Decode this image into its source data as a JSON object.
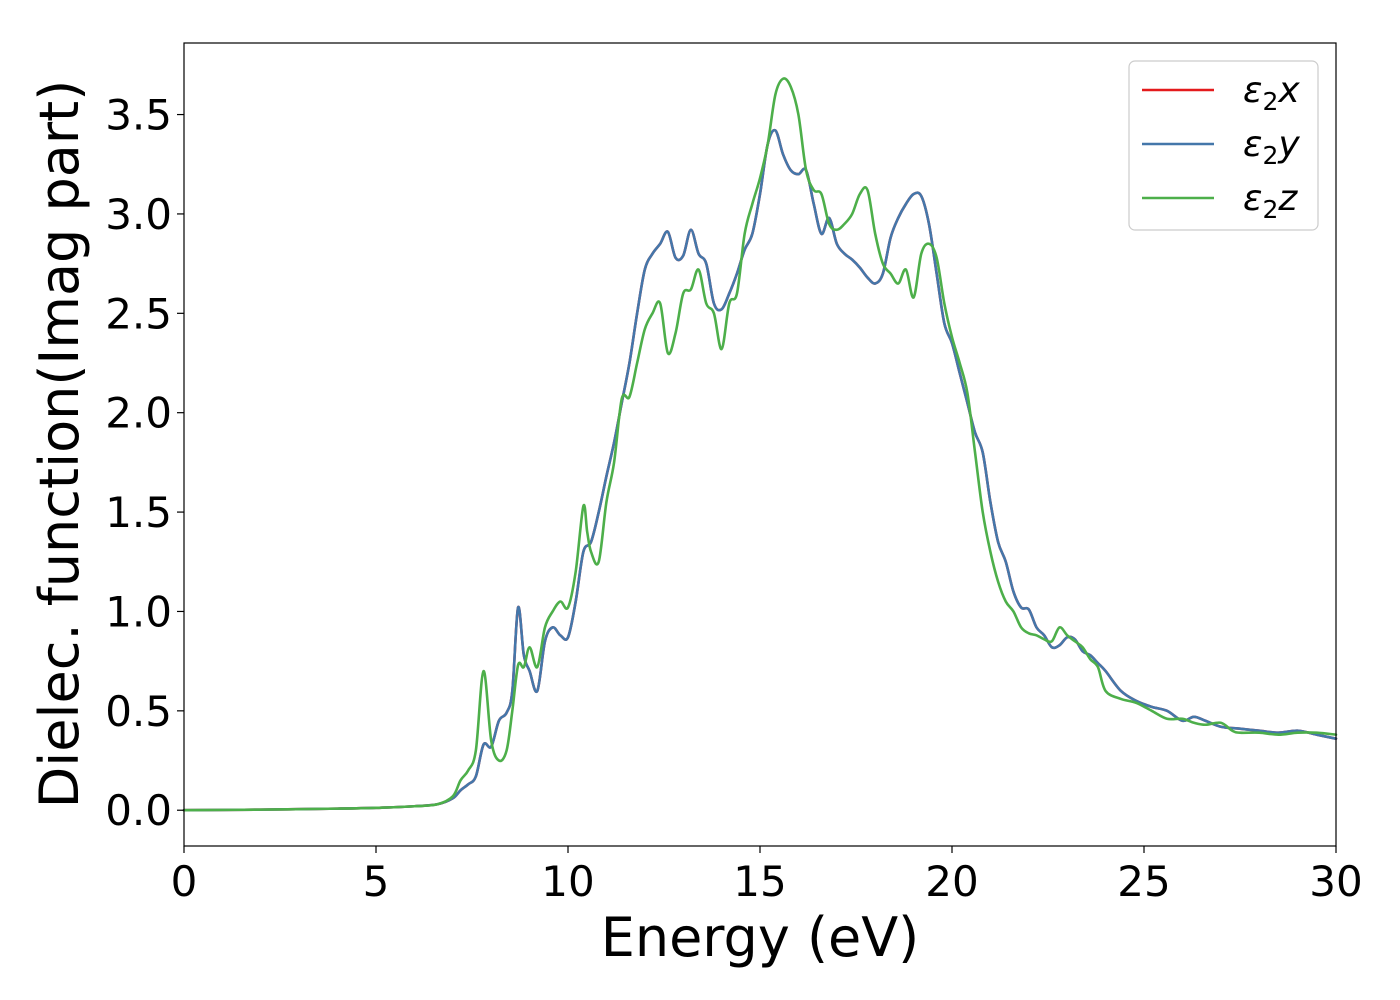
{
  "chart_data": {
    "type": "line",
    "title": "",
    "xlabel": "Energy (eV)",
    "ylabel": "Dielec. function(Imag part)",
    "xlim": [
      0,
      30
    ],
    "ylim": [
      -0.18,
      3.86
    ],
    "xticks": [
      0,
      5,
      10,
      15,
      20,
      25,
      30
    ],
    "yticks": [
      0.0,
      0.5,
      1.0,
      1.5,
      2.0,
      2.5,
      3.0,
      3.5
    ],
    "xtick_labels": [
      "0",
      "5",
      "10",
      "15",
      "20",
      "25",
      "30"
    ],
    "ytick_labels": [
      "0.0",
      "0.5",
      "1.0",
      "1.5",
      "2.0",
      "2.5",
      "3.0",
      "3.5"
    ],
    "grid": false,
    "legend_position": "top-right",
    "series": [
      {
        "name": "ε2x",
        "legend_symbol": "ε",
        "legend_sub": "2",
        "legend_var": "x",
        "color": "#e41a1c",
        "x": [
          0,
          2,
          4,
          5,
          6,
          6.6,
          7.0,
          7.2,
          7.4,
          7.6,
          7.8,
          8.0,
          8.2,
          8.4,
          8.55,
          8.7,
          8.85,
          9.0,
          9.2,
          9.4,
          9.6,
          9.8,
          10.0,
          10.2,
          10.4,
          10.6,
          10.8,
          11.0,
          11.2,
          11.4,
          11.6,
          11.8,
          12.0,
          12.2,
          12.4,
          12.6,
          12.8,
          13.0,
          13.2,
          13.4,
          13.6,
          13.8,
          14.0,
          14.2,
          14.4,
          14.6,
          14.8,
          15.0,
          15.2,
          15.4,
          15.6,
          15.8,
          16.0,
          16.2,
          16.4,
          16.6,
          16.8,
          17.0,
          17.2,
          17.4,
          17.6,
          17.8,
          18.0,
          18.2,
          18.4,
          18.6,
          18.8,
          19.0,
          19.2,
          19.4,
          19.6,
          19.8,
          20.0,
          20.2,
          20.4,
          20.6,
          20.8,
          21.0,
          21.2,
          21.4,
          21.6,
          21.8,
          22.0,
          22.2,
          22.4,
          22.6,
          22.8,
          23.0,
          23.2,
          23.4,
          23.6,
          23.8,
          24.0,
          24.4,
          24.8,
          25.2,
          25.6,
          26.0,
          26.3,
          26.6,
          27.0,
          27.5,
          28.0,
          28.5,
          29.0,
          29.5,
          30.0
        ],
        "y": [
          0.0,
          0.003,
          0.008,
          0.012,
          0.02,
          0.03,
          0.06,
          0.1,
          0.13,
          0.17,
          0.33,
          0.32,
          0.45,
          0.49,
          0.6,
          1.02,
          0.78,
          0.7,
          0.6,
          0.85,
          0.92,
          0.88,
          0.87,
          1.05,
          1.3,
          1.35,
          1.5,
          1.68,
          1.85,
          2.05,
          2.25,
          2.5,
          2.72,
          2.8,
          2.85,
          2.91,
          2.78,
          2.79,
          2.92,
          2.8,
          2.75,
          2.55,
          2.52,
          2.6,
          2.7,
          2.82,
          2.9,
          3.1,
          3.35,
          3.42,
          3.3,
          3.22,
          3.2,
          3.22,
          3.05,
          2.9,
          2.98,
          2.85,
          2.8,
          2.77,
          2.73,
          2.68,
          2.65,
          2.7,
          2.88,
          2.98,
          3.05,
          3.1,
          3.09,
          2.95,
          2.7,
          2.45,
          2.35,
          2.2,
          2.05,
          1.9,
          1.8,
          1.55,
          1.35,
          1.25,
          1.1,
          1.02,
          1.01,
          0.92,
          0.88,
          0.82,
          0.83,
          0.87,
          0.86,
          0.8,
          0.78,
          0.74,
          0.7,
          0.6,
          0.55,
          0.52,
          0.5,
          0.45,
          0.47,
          0.45,
          0.42,
          0.41,
          0.4,
          0.39,
          0.4,
          0.38,
          0.36
        ]
      },
      {
        "name": "ε2y",
        "legend_symbol": "ε",
        "legend_sub": "2",
        "legend_var": "y",
        "color": "#4477aa",
        "x": [
          0,
          2,
          4,
          5,
          6,
          6.6,
          7.0,
          7.2,
          7.4,
          7.6,
          7.8,
          8.0,
          8.2,
          8.4,
          8.55,
          8.7,
          8.85,
          9.0,
          9.2,
          9.4,
          9.6,
          9.8,
          10.0,
          10.2,
          10.4,
          10.6,
          10.8,
          11.0,
          11.2,
          11.4,
          11.6,
          11.8,
          12.0,
          12.2,
          12.4,
          12.6,
          12.8,
          13.0,
          13.2,
          13.4,
          13.6,
          13.8,
          14.0,
          14.2,
          14.4,
          14.6,
          14.8,
          15.0,
          15.2,
          15.4,
          15.6,
          15.8,
          16.0,
          16.2,
          16.4,
          16.6,
          16.8,
          17.0,
          17.2,
          17.4,
          17.6,
          17.8,
          18.0,
          18.2,
          18.4,
          18.6,
          18.8,
          19.0,
          19.2,
          19.4,
          19.6,
          19.8,
          20.0,
          20.2,
          20.4,
          20.6,
          20.8,
          21.0,
          21.2,
          21.4,
          21.6,
          21.8,
          22.0,
          22.2,
          22.4,
          22.6,
          22.8,
          23.0,
          23.2,
          23.4,
          23.6,
          23.8,
          24.0,
          24.4,
          24.8,
          25.2,
          25.6,
          26.0,
          26.3,
          26.6,
          27.0,
          27.5,
          28.0,
          28.5,
          29.0,
          29.5,
          30.0
        ],
        "y": [
          0.0,
          0.003,
          0.008,
          0.012,
          0.02,
          0.03,
          0.06,
          0.1,
          0.13,
          0.17,
          0.33,
          0.32,
          0.45,
          0.49,
          0.6,
          1.02,
          0.78,
          0.7,
          0.6,
          0.85,
          0.92,
          0.88,
          0.87,
          1.05,
          1.3,
          1.35,
          1.5,
          1.68,
          1.85,
          2.05,
          2.25,
          2.5,
          2.72,
          2.8,
          2.85,
          2.91,
          2.78,
          2.79,
          2.92,
          2.8,
          2.75,
          2.55,
          2.52,
          2.6,
          2.7,
          2.82,
          2.9,
          3.1,
          3.35,
          3.42,
          3.3,
          3.22,
          3.2,
          3.22,
          3.05,
          2.9,
          2.98,
          2.85,
          2.8,
          2.77,
          2.73,
          2.68,
          2.65,
          2.7,
          2.88,
          2.98,
          3.05,
          3.1,
          3.09,
          2.95,
          2.7,
          2.45,
          2.35,
          2.2,
          2.05,
          1.9,
          1.8,
          1.55,
          1.35,
          1.25,
          1.1,
          1.02,
          1.01,
          0.92,
          0.88,
          0.82,
          0.83,
          0.87,
          0.86,
          0.8,
          0.78,
          0.74,
          0.7,
          0.6,
          0.55,
          0.52,
          0.5,
          0.45,
          0.47,
          0.45,
          0.42,
          0.41,
          0.4,
          0.39,
          0.4,
          0.38,
          0.36
        ]
      },
      {
        "name": "ε2z",
        "legend_symbol": "ε",
        "legend_sub": "2",
        "legend_var": "z",
        "color": "#4daf4a",
        "x": [
          0,
          2,
          4,
          5,
          6,
          6.6,
          7.0,
          7.2,
          7.4,
          7.6,
          7.8,
          8.0,
          8.2,
          8.4,
          8.55,
          8.7,
          8.85,
          9.0,
          9.2,
          9.4,
          9.6,
          9.8,
          10.0,
          10.2,
          10.4,
          10.5,
          10.6,
          10.8,
          11.0,
          11.2,
          11.4,
          11.6,
          11.8,
          12.0,
          12.2,
          12.4,
          12.6,
          12.8,
          13.0,
          13.2,
          13.4,
          13.6,
          13.8,
          14.0,
          14.2,
          14.4,
          14.6,
          14.8,
          15.0,
          15.2,
          15.4,
          15.6,
          15.8,
          16.0,
          16.2,
          16.4,
          16.6,
          16.8,
          17.0,
          17.2,
          17.4,
          17.6,
          17.8,
          18.0,
          18.2,
          18.4,
          18.6,
          18.8,
          19.0,
          19.2,
          19.4,
          19.6,
          19.8,
          20.0,
          20.2,
          20.4,
          20.6,
          20.8,
          21.0,
          21.2,
          21.4,
          21.6,
          21.8,
          22.0,
          22.2,
          22.4,
          22.6,
          22.8,
          23.0,
          23.2,
          23.4,
          23.6,
          23.8,
          24.0,
          24.4,
          24.8,
          25.2,
          25.6,
          26.0,
          26.3,
          26.6,
          27.0,
          27.3,
          27.5,
          28.0,
          28.5,
          29.0,
          29.5,
          30.0
        ],
        "y": [
          0.0,
          0.003,
          0.008,
          0.012,
          0.02,
          0.03,
          0.07,
          0.15,
          0.2,
          0.3,
          0.7,
          0.35,
          0.25,
          0.3,
          0.5,
          0.73,
          0.72,
          0.82,
          0.72,
          0.92,
          1.0,
          1.05,
          1.02,
          1.2,
          1.53,
          1.4,
          1.3,
          1.25,
          1.55,
          1.75,
          2.07,
          2.08,
          2.25,
          2.42,
          2.5,
          2.55,
          2.3,
          2.4,
          2.6,
          2.62,
          2.72,
          2.55,
          2.5,
          2.32,
          2.55,
          2.6,
          2.9,
          3.05,
          3.18,
          3.35,
          3.6,
          3.68,
          3.64,
          3.5,
          3.22,
          3.12,
          3.1,
          2.95,
          2.92,
          2.95,
          3.0,
          3.1,
          3.12,
          2.9,
          2.75,
          2.7,
          2.65,
          2.72,
          2.58,
          2.8,
          2.85,
          2.78,
          2.55,
          2.38,
          2.25,
          2.1,
          1.8,
          1.5,
          1.3,
          1.15,
          1.05,
          1.0,
          0.92,
          0.89,
          0.88,
          0.86,
          0.85,
          0.92,
          0.88,
          0.85,
          0.82,
          0.76,
          0.72,
          0.6,
          0.56,
          0.54,
          0.5,
          0.46,
          0.46,
          0.44,
          0.43,
          0.44,
          0.4,
          0.39,
          0.39,
          0.38,
          0.39,
          0.39,
          0.38
        ]
      }
    ]
  }
}
